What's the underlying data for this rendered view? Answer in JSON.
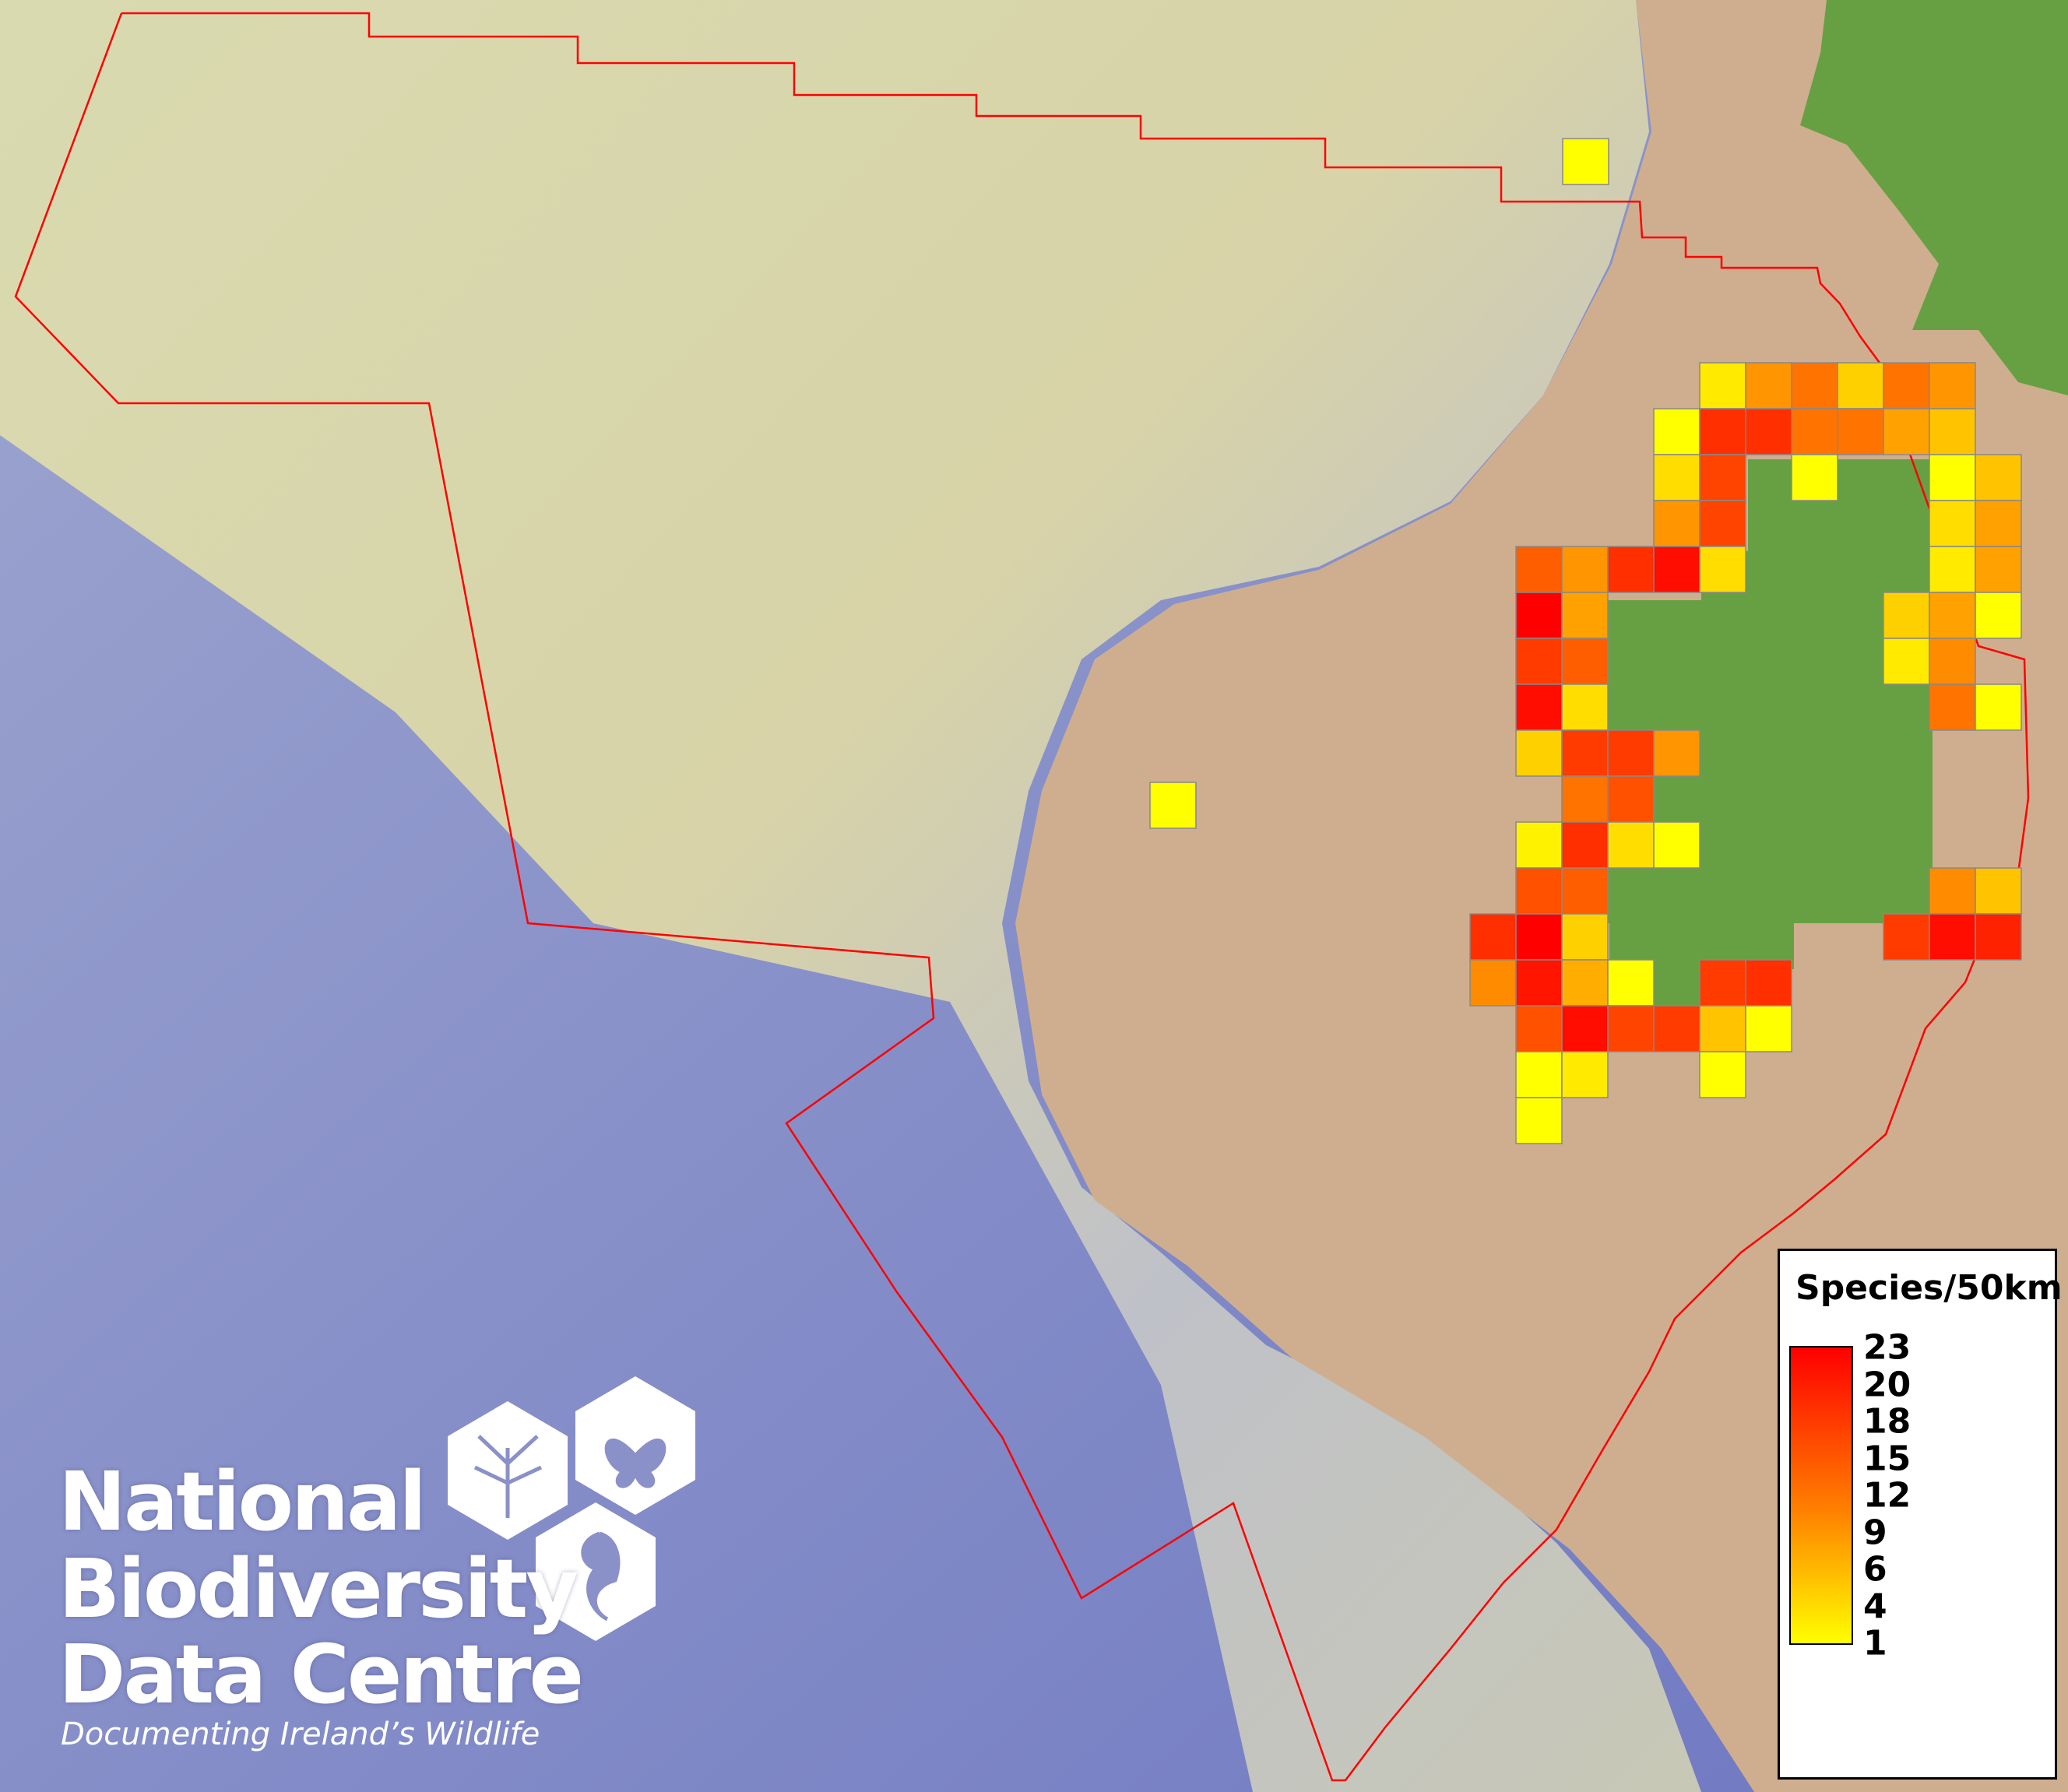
{
  "map": {
    "boundary_color": "#ff0000",
    "cell_border_color": "#888888",
    "scale_min_color": "#ffff00",
    "scale_max_color": "#ff0000",
    "land_color": "#cfae90",
    "green_color": "#67a043",
    "sea_color": "#7f88c9",
    "cell_values": [
      3,
      10,
      13,
      5,
      13,
      10,
      1,
      19,
      19,
      13,
      13,
      9,
      6,
      4,
      17,
      1,
      1,
      6,
      10,
      17,
      4,
      9,
      15,
      10,
      19,
      22,
      4,
      3,
      9,
      23,
      9,
      5,
      9,
      1,
      18,
      15,
      3,
      11,
      22,
      4,
      13,
      1,
      5,
      18,
      18,
      10,
      13,
      16,
      2,
      19,
      4,
      1,
      16,
      15,
      11,
      6,
      19,
      23,
      5,
      18,
      22,
      20,
      11,
      21,
      8,
      1,
      18,
      19,
      16,
      22,
      17,
      18,
      6,
      1,
      1,
      3,
      1,
      1,
      1,
      1
    ]
  },
  "legend": {
    "title": "Species/50km",
    "min": 1,
    "max": 23,
    "ticks": [
      "23",
      "20",
      "18",
      "15",
      "12",
      "9",
      "6",
      "4",
      "1"
    ]
  },
  "logo": {
    "line1": "National",
    "line2": "Biodiversity",
    "line3": "Data Centre",
    "tagline": "Documenting Ireland’s Wildlife",
    "icons": [
      "tree-icon",
      "butterfly-icon",
      "seahorse-icon"
    ]
  }
}
